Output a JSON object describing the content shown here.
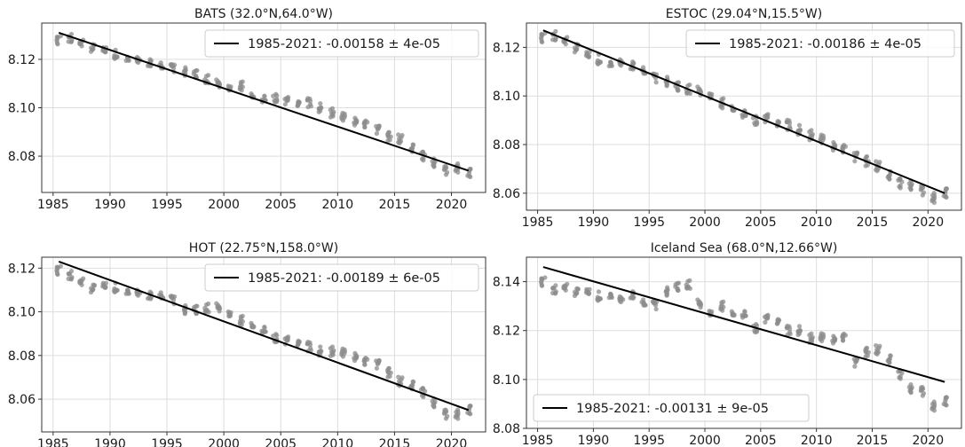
{
  "chart_data": [
    {
      "type": "scatter",
      "title": "BATS (32.0°N,64.0°W)",
      "xlim": [
        1984,
        2023
      ],
      "ylim": [
        8.065,
        8.135
      ],
      "xticks": [
        1985,
        1990,
        1995,
        2000,
        2005,
        2010,
        2015,
        2020
      ],
      "yticks": [
        8.08,
        8.1,
        8.12
      ],
      "ytick_labels": [
        "8.08",
        "8.10",
        "8.12"
      ],
      "grid": true,
      "legend_position": "top-right",
      "point_color": "#8c8c8c",
      "line_color": "#000000",
      "trend": {
        "label": "1985-2021:  -0.00158 ± 4e-05",
        "x": [
          1985.5,
          2021.5
        ],
        "y": [
          8.131,
          8.074
        ]
      },
      "points": [
        [
          1985.5,
          8.128
        ],
        [
          1986.5,
          8.129
        ],
        [
          1987.5,
          8.127
        ],
        [
          1988.5,
          8.125
        ],
        [
          1989.5,
          8.123
        ],
        [
          1990.5,
          8.122
        ],
        [
          1991.5,
          8.121
        ],
        [
          1992.5,
          8.12
        ],
        [
          1993.5,
          8.119
        ],
        [
          1994.5,
          8.117
        ],
        [
          1995.5,
          8.116
        ],
        [
          1996.5,
          8.115
        ],
        [
          1997.5,
          8.114
        ],
        [
          1998.5,
          8.112
        ],
        [
          1999.5,
          8.11
        ],
        [
          2000.5,
          8.109
        ],
        [
          2001.5,
          8.109
        ],
        [
          2002.5,
          8.106
        ],
        [
          2003.5,
          8.104
        ],
        [
          2004.5,
          8.104
        ],
        [
          2005.5,
          8.103
        ],
        [
          2006.5,
          8.102
        ],
        [
          2007.5,
          8.102
        ],
        [
          2008.5,
          8.1
        ],
        [
          2009.5,
          8.098
        ],
        [
          2010.5,
          8.096
        ],
        [
          2011.5,
          8.094
        ],
        [
          2012.5,
          8.093
        ],
        [
          2013.5,
          8.091
        ],
        [
          2014.5,
          8.088
        ],
        [
          2015.5,
          8.087
        ],
        [
          2016.5,
          8.083
        ],
        [
          2017.5,
          8.08
        ],
        [
          2018.5,
          8.077
        ],
        [
          2019.5,
          8.074
        ],
        [
          2020.5,
          8.075
        ],
        [
          2021.5,
          8.073
        ]
      ]
    },
    {
      "type": "scatter",
      "title": "ESTOC (29.04°N,15.5°W)",
      "xlim": [
        1984,
        2023
      ],
      "ylim": [
        8.053,
        8.13
      ],
      "xticks": [
        1985,
        1990,
        1995,
        2000,
        2005,
        2010,
        2015,
        2020
      ],
      "yticks": [
        8.06,
        8.08,
        8.1,
        8.12
      ],
      "ytick_labels": [
        "8.06",
        "8.08",
        "8.10",
        "8.12"
      ],
      "grid": true,
      "legend_position": "top-right",
      "point_color": "#8c8c8c",
      "line_color": "#000000",
      "trend": {
        "label": "1985-2021:  -0.00186 ± 4e-05",
        "x": [
          1985.5,
          2021.5
        ],
        "y": [
          8.127,
          8.06
        ]
      },
      "points": [
        [
          1985.5,
          8.124
        ],
        [
          1986.5,
          8.125
        ],
        [
          1987.5,
          8.123
        ],
        [
          1988.5,
          8.12
        ],
        [
          1989.5,
          8.116
        ],
        [
          1990.5,
          8.115
        ],
        [
          1991.5,
          8.114
        ],
        [
          1992.5,
          8.114
        ],
        [
          1993.5,
          8.113
        ],
        [
          1994.5,
          8.11
        ],
        [
          1995.5,
          8.107
        ],
        [
          1996.5,
          8.106
        ],
        [
          1997.5,
          8.104
        ],
        [
          1998.5,
          8.103
        ],
        [
          1999.5,
          8.102
        ],
        [
          2000.5,
          8.101
        ],
        [
          2001.5,
          8.097
        ],
        [
          2002.5,
          8.096
        ],
        [
          2003.5,
          8.093
        ],
        [
          2004.5,
          8.09
        ],
        [
          2005.5,
          8.091
        ],
        [
          2006.5,
          8.089
        ],
        [
          2007.5,
          8.088
        ],
        [
          2008.5,
          8.086
        ],
        [
          2009.5,
          8.084
        ],
        [
          2010.5,
          8.082
        ],
        [
          2011.5,
          8.079
        ],
        [
          2012.5,
          8.078
        ],
        [
          2013.5,
          8.075
        ],
        [
          2014.5,
          8.073
        ],
        [
          2015.5,
          8.071
        ],
        [
          2016.5,
          8.067
        ],
        [
          2017.5,
          8.064
        ],
        [
          2018.5,
          8.063
        ],
        [
          2019.5,
          8.061
        ],
        [
          2020.5,
          8.058
        ],
        [
          2021.5,
          8.06
        ]
      ]
    },
    {
      "type": "scatter",
      "title": "HOT (22.75°N,158.0°W)",
      "xlim": [
        1984,
        2023
      ],
      "ylim": [
        8.045,
        8.125
      ],
      "xticks": [
        1985,
        1990,
        1995,
        2000,
        2005,
        2010,
        2015,
        2020
      ],
      "yticks": [
        8.06,
        8.08,
        8.1,
        8.12
      ],
      "ytick_labels": [
        "8.06",
        "8.08",
        "8.10",
        "8.12"
      ],
      "grid": true,
      "legend_position": "top-right",
      "point_color": "#8c8c8c",
      "line_color": "#000000",
      "trend": {
        "label": "1985-2021:  -0.00189 ± 6e-05",
        "x": [
          1985.5,
          2021.5
        ],
        "y": [
          8.123,
          8.055
        ]
      },
      "points": [
        [
          1985.5,
          8.119
        ],
        [
          1986.5,
          8.117
        ],
        [
          1987.5,
          8.114
        ],
        [
          1988.5,
          8.111
        ],
        [
          1989.5,
          8.111
        ],
        [
          1990.5,
          8.111
        ],
        [
          1991.5,
          8.11
        ],
        [
          1992.5,
          8.109
        ],
        [
          1993.5,
          8.108
        ],
        [
          1994.5,
          8.107
        ],
        [
          1995.5,
          8.105
        ],
        [
          1996.5,
          8.101
        ],
        [
          1997.5,
          8.101
        ],
        [
          1998.5,
          8.102
        ],
        [
          1999.5,
          8.102
        ],
        [
          2000.5,
          8.1
        ],
        [
          2001.5,
          8.096
        ],
        [
          2002.5,
          8.095
        ],
        [
          2003.5,
          8.092
        ],
        [
          2004.5,
          8.088
        ],
        [
          2005.5,
          8.087
        ],
        [
          2006.5,
          8.086
        ],
        [
          2007.5,
          8.084
        ],
        [
          2008.5,
          8.082
        ],
        [
          2009.5,
          8.082
        ],
        [
          2010.5,
          8.081
        ],
        [
          2011.5,
          8.079
        ],
        [
          2012.5,
          8.077
        ],
        [
          2013.5,
          8.076
        ],
        [
          2014.5,
          8.072
        ],
        [
          2015.5,
          8.068
        ],
        [
          2016.5,
          8.066
        ],
        [
          2017.5,
          8.063
        ],
        [
          2018.5,
          8.058
        ],
        [
          2019.5,
          8.053
        ],
        [
          2020.5,
          8.053
        ],
        [
          2021.5,
          8.055
        ]
      ]
    },
    {
      "type": "scatter",
      "title": "Iceland Sea (68.0°N,12.66°W)",
      "xlim": [
        1984,
        2023
      ],
      "ylim": [
        8.08,
        8.15
      ],
      "xticks": [
        1985,
        1990,
        1995,
        2000,
        2005,
        2010,
        2015,
        2020
      ],
      "yticks": [
        8.08,
        8.1,
        8.12,
        8.14
      ],
      "ytick_labels": [
        "8.08",
        "8.10",
        "8.12",
        "8.14"
      ],
      "grid": true,
      "legend_position": "bottom-left",
      "point_color": "#8c8c8c",
      "line_color": "#000000",
      "trend": {
        "label": "1985-2021:  -0.00131 ± 9e-05",
        "x": [
          1985.5,
          2021.5
        ],
        "y": [
          8.146,
          8.099
        ]
      },
      "points": [
        [
          1985.5,
          8.14
        ],
        [
          1986.5,
          8.137
        ],
        [
          1987.5,
          8.138
        ],
        [
          1988.5,
          8.136
        ],
        [
          1989.5,
          8.135
        ],
        [
          1990.5,
          8.134
        ],
        [
          1991.5,
          8.135
        ],
        [
          1992.5,
          8.133
        ],
        [
          1993.5,
          8.135
        ],
        [
          1994.5,
          8.131
        ],
        [
          1995.5,
          8.13
        ],
        [
          1996.5,
          8.136
        ],
        [
          1997.5,
          8.138
        ],
        [
          1998.5,
          8.139
        ],
        [
          1999.5,
          8.131
        ],
        [
          2000.5,
          8.128
        ],
        [
          2001.5,
          8.13
        ],
        [
          2002.5,
          8.128
        ],
        [
          2003.5,
          8.127
        ],
        [
          2004.5,
          8.121
        ],
        [
          2005.5,
          8.125
        ],
        [
          2006.5,
          8.124
        ],
        [
          2007.5,
          8.12
        ],
        [
          2008.5,
          8.12
        ],
        [
          2009.5,
          8.117
        ],
        [
          2010.5,
          8.117
        ],
        [
          2011.5,
          8.116
        ],
        [
          2012.5,
          8.117
        ],
        [
          2013.5,
          8.107
        ],
        [
          2014.5,
          8.111
        ],
        [
          2015.5,
          8.112
        ],
        [
          2016.5,
          8.108
        ],
        [
          2017.5,
          8.102
        ],
        [
          2018.5,
          8.096
        ],
        [
          2019.5,
          8.095
        ],
        [
          2020.5,
          8.089
        ],
        [
          2021.5,
          8.091
        ]
      ]
    }
  ]
}
